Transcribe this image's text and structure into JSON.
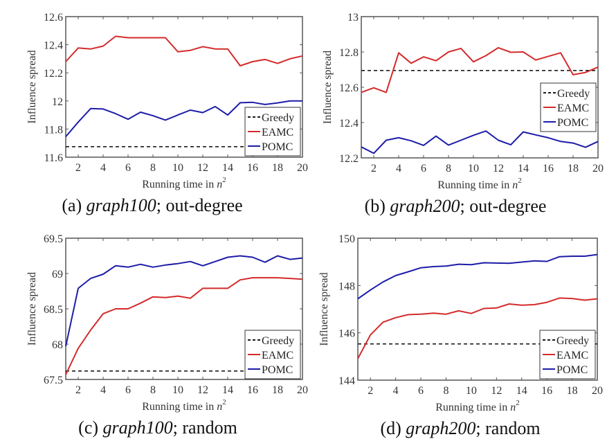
{
  "colors": {
    "greedy": "#1a1a1a",
    "eamc": "#d42a2a",
    "pomc": "#1c1ca8",
    "axis": "#555555"
  },
  "chart_data": [
    {
      "id": "a",
      "type": "line",
      "caption_prefix": "(a) ",
      "caption_italic": "graph100",
      "caption_suffix": "; out-degree",
      "xlabel": "Running time in n",
      "xlabel_sup": "2",
      "ylabel": "Influence spread",
      "xlim": [
        1,
        20
      ],
      "ylim": [
        11.6,
        12.6
      ],
      "xticks": [
        2,
        4,
        6,
        8,
        10,
        12,
        14,
        16,
        18,
        20
      ],
      "yticks": [
        11.6,
        11.8,
        12,
        12.2,
        12.4,
        12.6
      ],
      "ytick_labels": [
        "11.6",
        "11.8",
        "12",
        "12.2",
        "12.4",
        "12.6"
      ],
      "legend_position": "bottom-right",
      "x": [
        1,
        2,
        3,
        4,
        5,
        6,
        7,
        8,
        9,
        10,
        11,
        12,
        13,
        14,
        15,
        16,
        17,
        18,
        19,
        20
      ],
      "series": [
        {
          "name": "Greedy",
          "style": "dashed",
          "values": [
            11.675,
            11.675,
            11.675,
            11.675,
            11.675,
            11.675,
            11.675,
            11.675,
            11.675,
            11.675,
            11.675,
            11.675,
            11.675,
            11.675,
            11.675,
            11.675,
            11.675,
            11.675,
            11.675,
            11.675
          ]
        },
        {
          "name": "EAMC",
          "style": "solid",
          "values": [
            12.28,
            12.377,
            12.37,
            12.39,
            12.46,
            12.45,
            12.45,
            12.45,
            12.45,
            12.35,
            12.36,
            12.386,
            12.37,
            12.37,
            12.25,
            12.28,
            12.295,
            12.267,
            12.3,
            12.32
          ]
        },
        {
          "name": "POMC",
          "style": "solid",
          "values": [
            11.746,
            11.85,
            11.946,
            11.943,
            11.91,
            11.87,
            11.92,
            11.895,
            11.864,
            11.9,
            11.935,
            11.917,
            11.96,
            11.9,
            11.987,
            11.99,
            11.975,
            11.986,
            12.0,
            12.0
          ]
        }
      ]
    },
    {
      "id": "b",
      "type": "line",
      "caption_prefix": "(b) ",
      "caption_italic": "graph200",
      "caption_suffix": "; out-degree",
      "xlabel": "Running time in n",
      "xlabel_sup": "2",
      "ylabel": "Influence spread",
      "xlim": [
        1,
        20
      ],
      "ylim": [
        12.2,
        13
      ],
      "xticks": [
        2,
        4,
        6,
        8,
        10,
        12,
        14,
        16,
        18,
        20
      ],
      "yticks": [
        12.2,
        12.4,
        12.6,
        12.8,
        13
      ],
      "ytick_labels": [
        "12.2",
        "12.4",
        "12.6",
        "12.8",
        "13"
      ],
      "legend_position": "center-right",
      "x": [
        1,
        2,
        3,
        4,
        5,
        6,
        7,
        8,
        9,
        10,
        11,
        12,
        13,
        14,
        15,
        16,
        17,
        18,
        19,
        20
      ],
      "series": [
        {
          "name": "Greedy",
          "style": "dashed",
          "values": [
            12.695,
            12.695,
            12.695,
            12.695,
            12.695,
            12.695,
            12.695,
            12.695,
            12.695,
            12.695,
            12.695,
            12.695,
            12.695,
            12.695,
            12.695,
            12.695,
            12.695,
            12.695,
            12.695,
            12.695
          ]
        },
        {
          "name": "EAMC",
          "style": "solid",
          "values": [
            12.571,
            12.597,
            12.571,
            12.795,
            12.736,
            12.772,
            12.75,
            12.8,
            12.82,
            12.744,
            12.779,
            12.824,
            12.798,
            12.8,
            12.754,
            12.775,
            12.795,
            12.671,
            12.684,
            12.714
          ]
        },
        {
          "name": "POMC",
          "style": "solid",
          "values": [
            12.262,
            12.226,
            12.3,
            12.314,
            12.297,
            12.271,
            12.323,
            12.272,
            12.3,
            12.328,
            12.352,
            12.3,
            12.274,
            12.347,
            12.33,
            12.314,
            12.293,
            12.284,
            12.26,
            12.293
          ]
        }
      ]
    },
    {
      "id": "c",
      "type": "line",
      "caption_prefix": "(c) ",
      "caption_italic": "graph100",
      "caption_suffix": "; random",
      "xlabel": "Running time in n",
      "xlabel_sup": "2",
      "ylabel": "Influence spread",
      "xlim": [
        1,
        20
      ],
      "ylim": [
        67.5,
        69.5
      ],
      "xticks": [
        2,
        4,
        6,
        8,
        10,
        12,
        14,
        16,
        18,
        20
      ],
      "yticks": [
        67.5,
        68,
        68.5,
        69,
        69.5
      ],
      "ytick_labels": [
        "67.5",
        "68",
        "68.5",
        "69",
        "69.5"
      ],
      "legend_position": "bottom-right",
      "x": [
        1,
        2,
        3,
        4,
        5,
        6,
        7,
        8,
        9,
        10,
        11,
        12,
        13,
        14,
        15,
        16,
        17,
        18,
        19,
        20
      ],
      "series": [
        {
          "name": "Greedy",
          "style": "dashed",
          "values": [
            67.62,
            67.62,
            67.62,
            67.62,
            67.62,
            67.62,
            67.62,
            67.62,
            67.62,
            67.62,
            67.62,
            67.62,
            67.62,
            67.62,
            67.62,
            67.62,
            67.62,
            67.62,
            67.62,
            67.62
          ]
        },
        {
          "name": "EAMC",
          "style": "solid",
          "values": [
            67.57,
            67.94,
            68.2,
            68.43,
            68.5,
            68.5,
            68.58,
            68.67,
            68.66,
            68.68,
            68.65,
            68.79,
            68.79,
            68.79,
            68.91,
            68.94,
            68.94,
            68.94,
            68.93,
            68.92
          ]
        },
        {
          "name": "POMC",
          "style": "solid",
          "values": [
            67.97,
            68.79,
            68.93,
            68.99,
            69.11,
            69.09,
            69.13,
            69.09,
            69.12,
            69.14,
            69.17,
            69.11,
            69.17,
            69.23,
            69.25,
            69.23,
            69.16,
            69.25,
            69.2,
            69.22
          ]
        }
      ]
    },
    {
      "id": "d",
      "type": "line",
      "caption_prefix": "(d) ",
      "caption_italic": "graph200",
      "caption_suffix": "; random",
      "xlabel": "Running time in n",
      "xlabel_sup": "2",
      "ylabel": "Influence spread",
      "xlim": [
        1,
        20
      ],
      "ylim": [
        144,
        150
      ],
      "xticks": [
        2,
        4,
        6,
        8,
        10,
        12,
        14,
        16,
        18,
        20
      ],
      "yticks": [
        144,
        146,
        148,
        150
      ],
      "ytick_labels": [
        "144",
        "146",
        "148",
        "150"
      ],
      "legend_position": "bottom-right",
      "x": [
        1,
        2,
        3,
        4,
        5,
        6,
        7,
        8,
        9,
        10,
        11,
        12,
        13,
        14,
        15,
        16,
        17,
        18,
        19,
        20
      ],
      "series": [
        {
          "name": "Greedy",
          "style": "dashed",
          "values": [
            145.53,
            145.53,
            145.53,
            145.53,
            145.53,
            145.53,
            145.53,
            145.53,
            145.53,
            145.53,
            145.53,
            145.53,
            145.53,
            145.53,
            145.53,
            145.53,
            145.53,
            145.53,
            145.53,
            145.53
          ]
        },
        {
          "name": "EAMC",
          "style": "solid",
          "values": [
            144.91,
            145.91,
            146.45,
            146.64,
            146.77,
            146.79,
            146.83,
            146.79,
            146.93,
            146.82,
            147.03,
            147.05,
            147.22,
            147.17,
            147.19,
            147.29,
            147.47,
            147.45,
            147.38,
            147.44
          ]
        },
        {
          "name": "POMC",
          "style": "solid",
          "values": [
            147.44,
            147.81,
            148.15,
            148.42,
            148.58,
            148.75,
            148.8,
            148.82,
            148.9,
            148.88,
            148.96,
            148.95,
            148.94,
            148.99,
            149.04,
            149.02,
            149.22,
            149.24,
            149.24,
            149.31
          ]
        }
      ]
    }
  ]
}
